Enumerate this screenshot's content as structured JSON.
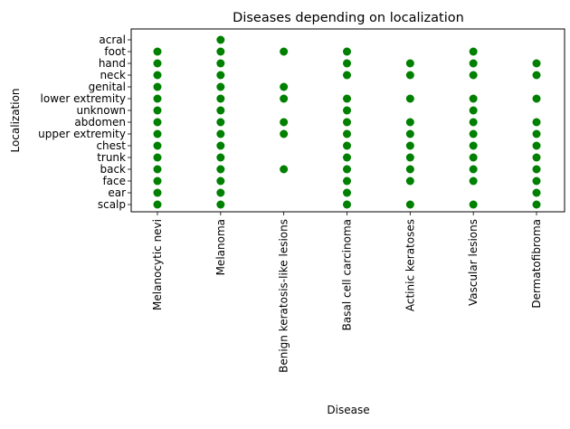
{
  "chart_data": {
    "type": "scatter",
    "title": "Diseases depending on localization",
    "xlabel": "Disease",
    "ylabel": "Localization",
    "grid": false,
    "legend": "none",
    "marker_color": "#008000",
    "x_categories": [
      "Melanocytic nevi",
      "Melanoma",
      "Benign keratosis-like lesions",
      "Basal cell carcinoma",
      "Actinic keratoses",
      "Vascular lesions",
      "Dermatofibroma"
    ],
    "y_categories": [
      "scalp",
      "ear",
      "face",
      "back",
      "trunk",
      "chest",
      "upper extremity",
      "abdomen",
      "unknown",
      "lower extremity",
      "genital",
      "neck",
      "hand",
      "foot",
      "acral"
    ],
    "points": [
      {
        "x": "Melanocytic nevi",
        "y": [
          "foot",
          "hand",
          "neck",
          "genital",
          "lower extremity",
          "unknown",
          "abdomen",
          "upper extremity",
          "chest",
          "trunk",
          "back",
          "face",
          "ear",
          "scalp"
        ]
      },
      {
        "x": "Melanoma",
        "y": [
          "acral",
          "foot",
          "hand",
          "neck",
          "genital",
          "lower extremity",
          "unknown",
          "abdomen",
          "upper extremity",
          "chest",
          "trunk",
          "back",
          "face",
          "ear",
          "scalp"
        ]
      },
      {
        "x": "Benign keratosis-like lesions",
        "y": [
          "foot",
          "genital",
          "lower extremity",
          "abdomen",
          "upper extremity",
          "back"
        ]
      },
      {
        "x": "Basal cell carcinoma",
        "y": [
          "foot",
          "hand",
          "neck",
          "lower extremity",
          "unknown",
          "abdomen",
          "upper extremity",
          "chest",
          "trunk",
          "back",
          "face",
          "ear",
          "scalp"
        ]
      },
      {
        "x": "Actinic keratoses",
        "y": [
          "hand",
          "neck",
          "lower extremity",
          "abdomen",
          "upper extremity",
          "chest",
          "trunk",
          "back",
          "face",
          "scalp"
        ]
      },
      {
        "x": "Vascular lesions",
        "y": [
          "foot",
          "hand",
          "neck",
          "lower extremity",
          "unknown",
          "abdomen",
          "upper extremity",
          "chest",
          "trunk",
          "back",
          "face",
          "scalp"
        ]
      },
      {
        "x": "Dermatofibroma",
        "y": [
          "hand",
          "neck",
          "lower extremity",
          "abdomen",
          "upper extremity",
          "chest",
          "trunk",
          "back",
          "face",
          "ear",
          "scalp"
        ]
      }
    ]
  }
}
